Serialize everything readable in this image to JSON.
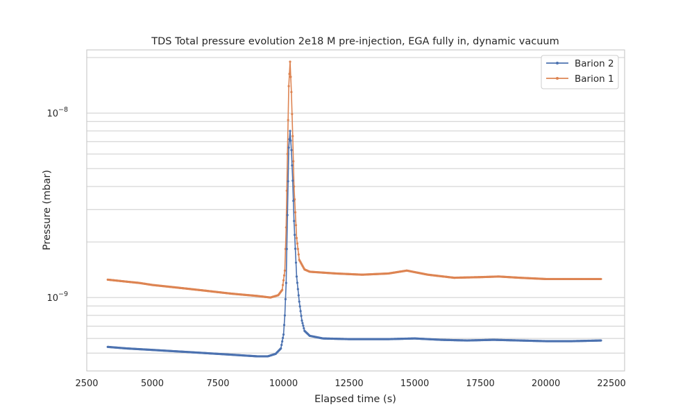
{
  "chart_data": {
    "type": "line",
    "title": "TDS Total pressure evolution 2e18 M pre-injection, EGA fully in, dynamic vacuum",
    "xlabel": "Elapsed time (s)",
    "ylabel": "Pressure (mbar)",
    "xlim": [
      2500,
      23000
    ],
    "ylim": [
      4e-10,
      2.2e-08
    ],
    "yscale": "log",
    "grid": "horizontal",
    "legend": "top-right",
    "x_ticks": [
      2500,
      5000,
      7500,
      10000,
      12500,
      15000,
      17500,
      20000,
      22500
    ],
    "x_tick_labels": [
      "2500",
      "5000",
      "7500",
      "10000",
      "12500",
      "15000",
      "17500",
      "20000",
      "22500"
    ],
    "y_major_ticks": [
      1e-09,
      1e-08
    ],
    "y_tick_labels": [
      {
        "base": "10",
        "exp": "−9"
      },
      {
        "base": "10",
        "exp": "−8"
      }
    ],
    "y_minor_ticks": [
      4e-10,
      5e-10,
      6e-10,
      7e-10,
      8e-10,
      9e-10,
      2e-09,
      3e-09,
      4e-09,
      5e-09,
      6e-09,
      7e-09,
      8e-09,
      9e-09,
      2e-08
    ],
    "series": [
      {
        "name": "Barion 2",
        "color": "#4c72b0",
        "points": [
          [
            3300,
            5.4e-10
          ],
          [
            4000,
            5.3e-10
          ],
          [
            5000,
            5.2e-10
          ],
          [
            6000,
            5.1e-10
          ],
          [
            7000,
            5e-10
          ],
          [
            8000,
            4.9e-10
          ],
          [
            9000,
            4.8e-10
          ],
          [
            9400,
            4.8e-10
          ],
          [
            9700,
            4.95e-10
          ],
          [
            9900,
            5.3e-10
          ],
          [
            10000,
            6.3e-10
          ],
          [
            10050,
            8e-10
          ],
          [
            10100,
            1.2e-09
          ],
          [
            10150,
            2.8e-09
          ],
          [
            10200,
            6.5e-09
          ],
          [
            10250,
            8e-09
          ],
          [
            10300,
            6.3e-09
          ],
          [
            10350,
            4.3e-09
          ],
          [
            10400,
            2.6e-09
          ],
          [
            10500,
            1.3e-09
          ],
          [
            10600,
            9.5e-10
          ],
          [
            10700,
            7.5e-10
          ],
          [
            10800,
            6.6e-10
          ],
          [
            11000,
            6.2e-10
          ],
          [
            11500,
            6e-10
          ],
          [
            12500,
            5.95e-10
          ],
          [
            14000,
            5.95e-10
          ],
          [
            15000,
            6e-10
          ],
          [
            16000,
            5.9e-10
          ],
          [
            17000,
            5.85e-10
          ],
          [
            18000,
            5.9e-10
          ],
          [
            19000,
            5.85e-10
          ],
          [
            20000,
            5.8e-10
          ],
          [
            21000,
            5.8e-10
          ],
          [
            22100,
            5.85e-10
          ]
        ]
      },
      {
        "name": "Barion 1",
        "color": "#dd8452",
        "points": [
          [
            3300,
            1.25e-09
          ],
          [
            4000,
            1.22e-09
          ],
          [
            4500,
            1.2e-09
          ],
          [
            5000,
            1.17e-09
          ],
          [
            6000,
            1.13e-09
          ],
          [
            7000,
            1.09e-09
          ],
          [
            8000,
            1.05e-09
          ],
          [
            9000,
            1.02e-09
          ],
          [
            9500,
            1e-09
          ],
          [
            9800,
            1.03e-09
          ],
          [
            9950,
            1.1e-09
          ],
          [
            10050,
            1.4e-09
          ],
          [
            10100,
            2.4e-09
          ],
          [
            10150,
            6e-09
          ],
          [
            10200,
            1.4e-08
          ],
          [
            10250,
            1.9e-08
          ],
          [
            10300,
            1.3e-08
          ],
          [
            10350,
            7.5e-09
          ],
          [
            10400,
            4e-09
          ],
          [
            10500,
            2.1e-09
          ],
          [
            10600,
            1.6e-09
          ],
          [
            10800,
            1.42e-09
          ],
          [
            11000,
            1.38e-09
          ],
          [
            12000,
            1.35e-09
          ],
          [
            13000,
            1.33e-09
          ],
          [
            14000,
            1.35e-09
          ],
          [
            14700,
            1.4e-09
          ],
          [
            15500,
            1.33e-09
          ],
          [
            16500,
            1.28e-09
          ],
          [
            17500,
            1.29e-09
          ],
          [
            18200,
            1.3e-09
          ],
          [
            19000,
            1.28e-09
          ],
          [
            20000,
            1.26e-09
          ],
          [
            21000,
            1.26e-09
          ],
          [
            22100,
            1.26e-09
          ]
        ]
      }
    ]
  }
}
